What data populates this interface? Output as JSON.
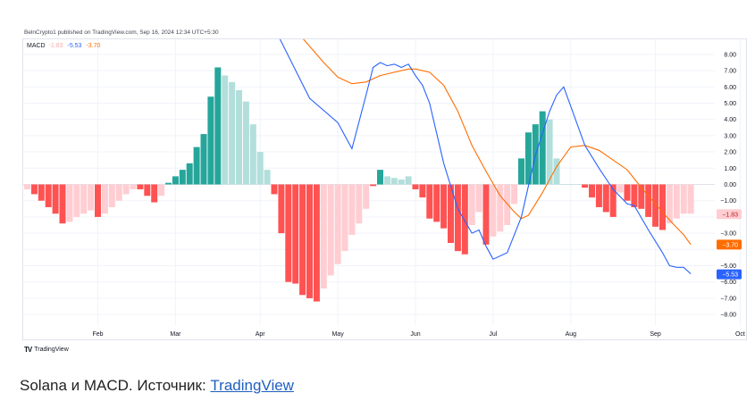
{
  "publisher_line": "BelnCrypto1 published on TradingView.com, Sep 16, 2024 12:34 UTC+5:30",
  "legend": {
    "name": "MACD",
    "histogram": "-1.83",
    "macd": "-5.53",
    "signal": "-3.70"
  },
  "logo_text": "TradingView",
  "caption": {
    "text": "Solana и MACD. Источник: ",
    "link": "TradingView"
  },
  "colors": {
    "macd_line": "#2962ff",
    "signal_line": "#ff6d00",
    "hist_pos_strong": "#26a69a",
    "hist_pos_weak": "#b2dfdb",
    "hist_neg_strong": "#ff5252",
    "hist_neg_weak": "#ffcdd2",
    "hist_badge": "#ffcdd2",
    "hist_badge_text": "#b71c1c"
  },
  "chart_data": {
    "type": "bar",
    "ylim": [
      -8.5,
      8.5
    ],
    "y_ticks": [
      8,
      7,
      6,
      5,
      4,
      3,
      2,
      1,
      0,
      -1,
      -2,
      -3,
      -4,
      -5,
      -6,
      -7,
      -8
    ],
    "y_tick_labels": [
      "8.00",
      "7.00",
      "6.00",
      "5.00",
      "4.00",
      "3.00",
      "2.00",
      "1.00",
      "0.00",
      "−1.00",
      "",
      "−3.00",
      "",
      "−5.00",
      "−6.00",
      "−7.00",
      "−8.00"
    ],
    "x_tick_labels": [
      "Feb",
      "Mar",
      "Apr",
      "May",
      "Jun",
      "Jul",
      "Aug",
      "Sep",
      "Oct"
    ],
    "x_tick_bars": [
      10,
      21,
      33,
      44,
      55,
      66,
      77,
      89,
      101
    ],
    "price_labels": [
      {
        "series": "histogram",
        "value": -1.83,
        "label": "−1.83"
      },
      {
        "series": "signal",
        "value": -3.7,
        "label": "−3.70"
      },
      {
        "series": "macd",
        "value": -5.53,
        "label": "−5.53"
      }
    ],
    "histogram": [
      -0.3,
      -0.6,
      -1.0,
      -1.4,
      -1.8,
      -2.4,
      -2.3,
      -2.0,
      -1.8,
      -1.6,
      -2.0,
      -1.8,
      -1.4,
      -1.0,
      -0.6,
      -0.3,
      -0.3,
      -0.7,
      -1.1,
      -0.7,
      0.1,
      0.5,
      0.9,
      1.3,
      2.3,
      3.1,
      5.4,
      7.2,
      6.7,
      6.3,
      5.8,
      5.1,
      3.7,
      2.0,
      0.9,
      -0.6,
      -3.0,
      -6.0,
      -6.1,
      -6.8,
      -7.0,
      -7.2,
      -6.4,
      -5.6,
      -4.9,
      -4.1,
      -3.1,
      -2.4,
      -1.5,
      -0.1,
      0.9,
      0.5,
      0.4,
      0.3,
      0.5,
      -0.3,
      -0.8,
      -2.1,
      -2.3,
      -2.7,
      -3.6,
      -4.1,
      -4.3,
      -2.5,
      -1.7,
      -3.7,
      -3.2,
      -2.9,
      -2.5,
      -1.2,
      1.6,
      3.2,
      3.7,
      4.5,
      4.0,
      1.6,
      0.0,
      0.0,
      0.0,
      -0.2,
      -0.8,
      -1.4,
      -1.7,
      -2.0,
      -0.5,
      -1.0,
      -1.4,
      -1.5,
      -2.0,
      -2.6,
      -2.8,
      -2.4,
      -2.1,
      -1.8,
      -1.8
    ],
    "histogram_strength": [
      "weak",
      "strong",
      "strong",
      "strong",
      "strong",
      "strong",
      "weak",
      "weak",
      "weak",
      "weak",
      "strong",
      "weak",
      "weak",
      "weak",
      "weak",
      "weak",
      "strong",
      "strong",
      "strong",
      "weak",
      "strong",
      "strong",
      "strong",
      "strong",
      "strong",
      "strong",
      "strong",
      "strong",
      "weak",
      "weak",
      "weak",
      "weak",
      "weak",
      "weak",
      "weak",
      "strong",
      "strong",
      "strong",
      "strong",
      "strong",
      "strong",
      "strong",
      "weak",
      "weak",
      "weak",
      "weak",
      "weak",
      "weak",
      "weak",
      "strong",
      "strong",
      "weak",
      "weak",
      "weak",
      "weak",
      "strong",
      "strong",
      "strong",
      "strong",
      "strong",
      "strong",
      "strong",
      "strong",
      "weak",
      "weak",
      "strong",
      "weak",
      "weak",
      "weak",
      "weak",
      "strong",
      "strong",
      "strong",
      "strong",
      "weak",
      "weak",
      "weak",
      "weak",
      "weak",
      "strong",
      "strong",
      "strong",
      "strong",
      "strong",
      "weak",
      "strong",
      "strong",
      "strong",
      "strong",
      "strong",
      "strong",
      "weak",
      "weak",
      "weak",
      "weak"
    ],
    "macd": [
      {
        "bar": 34,
        "value": 10.5
      },
      {
        "bar": 40,
        "value": 5.3
      },
      {
        "bar": 44,
        "value": 3.8
      },
      {
        "bar": 46,
        "value": 2.2
      },
      {
        "bar": 48,
        "value": 5.5
      },
      {
        "bar": 49,
        "value": 7.2
      },
      {
        "bar": 50,
        "value": 7.5
      },
      {
        "bar": 51,
        "value": 7.3
      },
      {
        "bar": 52,
        "value": 7.4
      },
      {
        "bar": 53,
        "value": 7.2
      },
      {
        "bar": 54,
        "value": 7.4
      },
      {
        "bar": 55,
        "value": 6.7
      },
      {
        "bar": 56,
        "value": 6.1
      },
      {
        "bar": 57,
        "value": 5.0
      },
      {
        "bar": 59,
        "value": 1.3
      },
      {
        "bar": 61,
        "value": -1.5
      },
      {
        "bar": 63,
        "value": -3.0
      },
      {
        "bar": 64,
        "value": -2.8
      },
      {
        "bar": 65,
        "value": -3.8
      },
      {
        "bar": 66,
        "value": -4.6
      },
      {
        "bar": 68,
        "value": -4.2
      },
      {
        "bar": 70,
        "value": -2.0
      },
      {
        "bar": 72,
        "value": 1.8
      },
      {
        "bar": 74,
        "value": 4.5
      },
      {
        "bar": 75,
        "value": 5.5
      },
      {
        "bar": 76,
        "value": 6.0
      },
      {
        "bar": 77,
        "value": 4.8
      },
      {
        "bar": 79,
        "value": 2.4
      },
      {
        "bar": 81,
        "value": 1.0
      },
      {
        "bar": 83,
        "value": -0.3
      },
      {
        "bar": 85,
        "value": -1.2
      },
      {
        "bar": 86,
        "value": -1.3
      },
      {
        "bar": 88,
        "value": -2.8
      },
      {
        "bar": 90,
        "value": -4.2
      },
      {
        "bar": 91,
        "value": -5.0
      },
      {
        "bar": 92,
        "value": -5.1
      },
      {
        "bar": 93,
        "value": -5.1
      },
      {
        "bar": 94,
        "value": -5.5
      }
    ],
    "signal": [
      {
        "bar": 39,
        "value": 9.0
      },
      {
        "bar": 42,
        "value": 7.5
      },
      {
        "bar": 44,
        "value": 6.6
      },
      {
        "bar": 46,
        "value": 6.2
      },
      {
        "bar": 48,
        "value": 6.3
      },
      {
        "bar": 50,
        "value": 6.7
      },
      {
        "bar": 52,
        "value": 6.9
      },
      {
        "bar": 54,
        "value": 7.1
      },
      {
        "bar": 55,
        "value": 7.1
      },
      {
        "bar": 57,
        "value": 6.9
      },
      {
        "bar": 59,
        "value": 6.1
      },
      {
        "bar": 61,
        "value": 4.5
      },
      {
        "bar": 63,
        "value": 2.4
      },
      {
        "bar": 65,
        "value": 0.8
      },
      {
        "bar": 67,
        "value": -0.7
      },
      {
        "bar": 69,
        "value": -1.7
      },
      {
        "bar": 70,
        "value": -2.1
      },
      {
        "bar": 71,
        "value": -1.9
      },
      {
        "bar": 73,
        "value": -0.5
      },
      {
        "bar": 75,
        "value": 1.1
      },
      {
        "bar": 77,
        "value": 2.3
      },
      {
        "bar": 79,
        "value": 2.4
      },
      {
        "bar": 81,
        "value": 2.1
      },
      {
        "bar": 83,
        "value": 1.5
      },
      {
        "bar": 85,
        "value": 0.9
      },
      {
        "bar": 87,
        "value": -0.2
      },
      {
        "bar": 89,
        "value": -1.2
      },
      {
        "bar": 91,
        "value": -2.2
      },
      {
        "bar": 93,
        "value": -3.1
      },
      {
        "bar": 94,
        "value": -3.7
      }
    ]
  }
}
